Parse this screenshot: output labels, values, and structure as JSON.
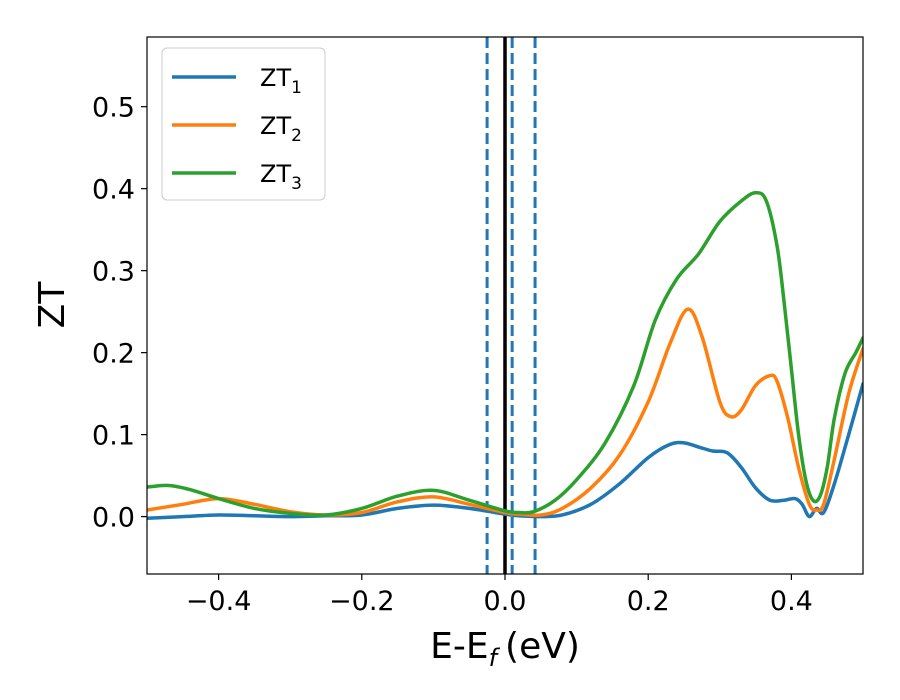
{
  "chart_data": {
    "type": "line",
    "xlabel": "E-E",
    "xlabel_sub": "f",
    "xlabel_unit": "(eV)",
    "ylabel": "ZT",
    "xlim": [
      -0.5,
      0.5
    ],
    "ylim": [
      -0.07,
      0.585
    ],
    "xticks": [
      -0.4,
      -0.2,
      0.0,
      0.2,
      0.4
    ],
    "xtick_labels": [
      "−0.4",
      "−0.2",
      "0.0",
      "0.2",
      "0.4"
    ],
    "yticks": [
      0.0,
      0.1,
      0.2,
      0.3,
      0.4,
      0.5
    ],
    "ytick_labels": [
      "0.0",
      "0.1",
      "0.2",
      "0.3",
      "0.4",
      "0.5"
    ],
    "grid": false,
    "legend_position": "top-left",
    "vertical_lines": [
      {
        "x": -0.025,
        "style": "dashed",
        "color": "#1f77b4"
      },
      {
        "x": 0.0,
        "style": "solid",
        "color": "#000000"
      },
      {
        "x": 0.01,
        "style": "dashed",
        "color": "#1f77b4"
      },
      {
        "x": 0.042,
        "style": "dashed",
        "color": "#1f77b4"
      }
    ],
    "series": [
      {
        "name": "ZT",
        "name_sub": "1",
        "color": "#1f77b4",
        "points": [
          [
            -0.5,
            -0.002
          ],
          [
            -0.45,
            0.0
          ],
          [
            -0.4,
            0.002
          ],
          [
            -0.35,
            0.001
          ],
          [
            -0.3,
            0.0
          ],
          [
            -0.25,
            0.001
          ],
          [
            -0.2,
            0.002
          ],
          [
            -0.15,
            0.01
          ],
          [
            -0.1,
            0.014
          ],
          [
            -0.05,
            0.01
          ],
          [
            0.0,
            0.003
          ],
          [
            0.02,
            0.001
          ],
          [
            0.05,
            0.0
          ],
          [
            0.08,
            0.002
          ],
          [
            0.12,
            0.015
          ],
          [
            0.16,
            0.04
          ],
          [
            0.2,
            0.072
          ],
          [
            0.23,
            0.088
          ],
          [
            0.25,
            0.09
          ],
          [
            0.27,
            0.085
          ],
          [
            0.29,
            0.08
          ],
          [
            0.31,
            0.078
          ],
          [
            0.33,
            0.06
          ],
          [
            0.35,
            0.035
          ],
          [
            0.37,
            0.02
          ],
          [
            0.39,
            0.02
          ],
          [
            0.405,
            0.022
          ],
          [
            0.415,
            0.015
          ],
          [
            0.425,
            0.0
          ],
          [
            0.435,
            0.01
          ],
          [
            0.445,
            0.005
          ],
          [
            0.46,
            0.04
          ],
          [
            0.48,
            0.1
          ],
          [
            0.5,
            0.162
          ]
        ]
      },
      {
        "name": "ZT",
        "name_sub": "2",
        "color": "#ff7f0e",
        "points": [
          [
            -0.5,
            0.008
          ],
          [
            -0.45,
            0.015
          ],
          [
            -0.4,
            0.022
          ],
          [
            -0.35,
            0.015
          ],
          [
            -0.3,
            0.006
          ],
          [
            -0.25,
            0.002
          ],
          [
            -0.2,
            0.005
          ],
          [
            -0.15,
            0.018
          ],
          [
            -0.1,
            0.024
          ],
          [
            -0.05,
            0.015
          ],
          [
            0.0,
            0.005
          ],
          [
            0.02,
            0.003
          ],
          [
            0.05,
            0.002
          ],
          [
            0.08,
            0.01
          ],
          [
            0.12,
            0.035
          ],
          [
            0.16,
            0.075
          ],
          [
            0.2,
            0.14
          ],
          [
            0.23,
            0.21
          ],
          [
            0.255,
            0.253
          ],
          [
            0.275,
            0.22
          ],
          [
            0.3,
            0.14
          ],
          [
            0.315,
            0.122
          ],
          [
            0.33,
            0.13
          ],
          [
            0.35,
            0.16
          ],
          [
            0.37,
            0.172
          ],
          [
            0.38,
            0.165
          ],
          [
            0.395,
            0.12
          ],
          [
            0.41,
            0.06
          ],
          [
            0.425,
            0.015
          ],
          [
            0.435,
            0.008
          ],
          [
            0.445,
            0.015
          ],
          [
            0.46,
            0.07
          ],
          [
            0.48,
            0.15
          ],
          [
            0.5,
            0.205
          ]
        ]
      },
      {
        "name": "ZT",
        "name_sub": "3",
        "color": "#2ca02c",
        "points": [
          [
            -0.5,
            0.036
          ],
          [
            -0.47,
            0.038
          ],
          [
            -0.44,
            0.033
          ],
          [
            -0.4,
            0.022
          ],
          [
            -0.35,
            0.01
          ],
          [
            -0.3,
            0.004
          ],
          [
            -0.25,
            0.002
          ],
          [
            -0.2,
            0.01
          ],
          [
            -0.15,
            0.025
          ],
          [
            -0.1,
            0.032
          ],
          [
            -0.05,
            0.02
          ],
          [
            0.0,
            0.007
          ],
          [
            0.02,
            0.005
          ],
          [
            0.04,
            0.006
          ],
          [
            0.07,
            0.02
          ],
          [
            0.1,
            0.045
          ],
          [
            0.14,
            0.09
          ],
          [
            0.18,
            0.16
          ],
          [
            0.21,
            0.24
          ],
          [
            0.24,
            0.29
          ],
          [
            0.27,
            0.32
          ],
          [
            0.3,
            0.36
          ],
          [
            0.33,
            0.385
          ],
          [
            0.35,
            0.395
          ],
          [
            0.365,
            0.385
          ],
          [
            0.38,
            0.33
          ],
          [
            0.39,
            0.26
          ],
          [
            0.4,
            0.18
          ],
          [
            0.41,
            0.1
          ],
          [
            0.42,
            0.045
          ],
          [
            0.43,
            0.02
          ],
          [
            0.44,
            0.025
          ],
          [
            0.45,
            0.06
          ],
          [
            0.46,
            0.12
          ],
          [
            0.475,
            0.175
          ],
          [
            0.49,
            0.2
          ],
          [
            0.5,
            0.218
          ]
        ]
      }
    ]
  }
}
